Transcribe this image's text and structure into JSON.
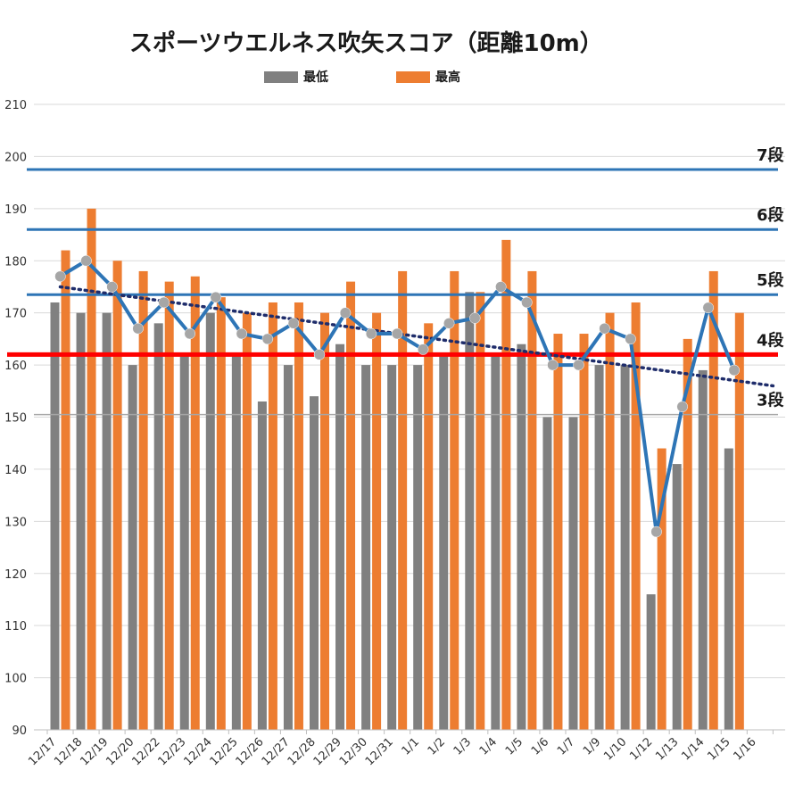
{
  "chart_data": {
    "type": "bar",
    "title": "スポーツウエルネス吹矢スコア（距離10m）",
    "categories": [
      "12/17",
      "12/18",
      "12/19",
      "12/20",
      "12/22",
      "12/23",
      "12/24",
      "12/25",
      "12/26",
      "12/27",
      "12/28",
      "12/29",
      "12/30",
      "12/31",
      "1/1",
      "1/2",
      "1/3",
      "1/4",
      "1/5",
      "1/6",
      "1/7",
      "1/9",
      "1/10",
      "1/12",
      "1/13",
      "1/14",
      "1/15",
      "1/16"
    ],
    "ylim": [
      90,
      210
    ],
    "yticks": [
      90,
      100,
      110,
      120,
      130,
      140,
      150,
      160,
      170,
      180,
      190,
      200,
      210
    ],
    "grid": true,
    "legend_position": "top",
    "series": [
      {
        "name": "最低",
        "type": "bar",
        "color": "#808080",
        "values": [
          172,
          170,
          170,
          160,
          168,
          162,
          170,
          162,
          153,
          160,
          154,
          164,
          160,
          160,
          160,
          162,
          174,
          162,
          164,
          150,
          150,
          160,
          160,
          116,
          141,
          159,
          144,
          null
        ]
      },
      {
        "name": "最高",
        "type": "bar",
        "color": "#ED7D31",
        "values": [
          182,
          190,
          180,
          178,
          176,
          177,
          173,
          170,
          172,
          172,
          170,
          176,
          170,
          178,
          168,
          178,
          174,
          184,
          178,
          166,
          166,
          170,
          172,
          144,
          165,
          178,
          170,
          null
        ]
      },
      {
        "name": "",
        "type": "line",
        "color": "#2E75B6",
        "marker_color": "#A6A6A6",
        "values": [
          177,
          180,
          175,
          167,
          172,
          166,
          173,
          166,
          165,
          168,
          162,
          170,
          166,
          166,
          163,
          168,
          169,
          175,
          172,
          160,
          160,
          167,
          165,
          128,
          152,
          171,
          159,
          null
        ]
      }
    ],
    "trendline": {
      "style": "dotted",
      "color": "#1F2D6B",
      "start": [
        0,
        175
      ],
      "end": [
        27.5,
        156
      ]
    },
    "reference_lines": [
      {
        "label": "7段",
        "value": 197.5,
        "color": "#2E75B6"
      },
      {
        "label": "6段",
        "value": 186,
        "color": "#2E75B6"
      },
      {
        "label": "5段",
        "value": 173.5,
        "color": "#2E75B6"
      },
      {
        "label": "4段",
        "value": 162,
        "color": "#FF0000"
      },
      {
        "label": "3段",
        "value": 150.5,
        "color": "#A6A6A6"
      }
    ]
  }
}
